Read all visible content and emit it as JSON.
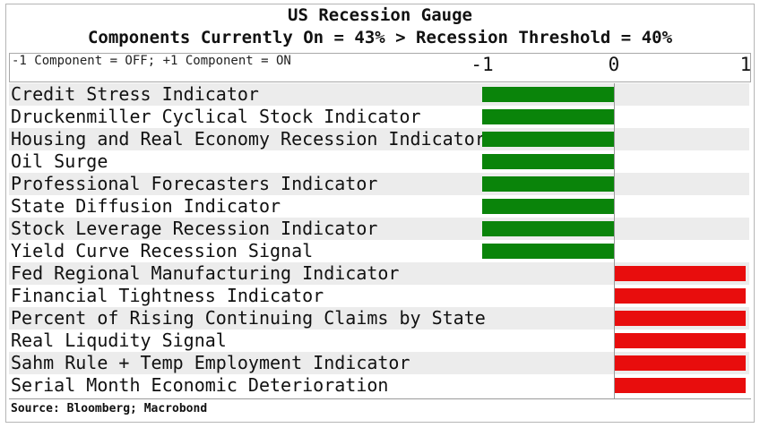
{
  "chart_data": {
    "type": "bar",
    "orientation": "horizontal",
    "title": "US Recession Gauge",
    "subtitle": "Components Currently On = 43% > Recession Threshold = 40%",
    "legend_note": "-1 Component = OFF; +1 Component = ON",
    "xlim": [
      -1,
      1
    ],
    "x_ticks": [
      "-1",
      "0",
      "1"
    ],
    "categories": [
      "Credit Stress Indicator",
      "Druckenmiller Cyclical Stock Indicator",
      "Housing and Real Economy Recession Indicator",
      "Oil Surge",
      "Professional Forecasters Indicator",
      "State Diffusion Indicator",
      "Stock Leverage Recession Indicator",
      "Yield Curve Recession Signal",
      "Fed Regional Manufacturing Indicator",
      "Financial Tightness Indicator",
      "Percent of Rising Continuing Claims by State",
      "Real Liqudity Signal",
      "Sahm Rule + Temp Employment Indicator",
      "Serial Month Economic Deterioration"
    ],
    "values": [
      -1,
      -1,
      -1,
      -1,
      -1,
      -1,
      -1,
      -1,
      1,
      1,
      1,
      1,
      1,
      1
    ],
    "colors": {
      "off": "#0a840a",
      "on": "#e80d0d"
    },
    "source": "Source: Bloomberg; Macrobond"
  }
}
